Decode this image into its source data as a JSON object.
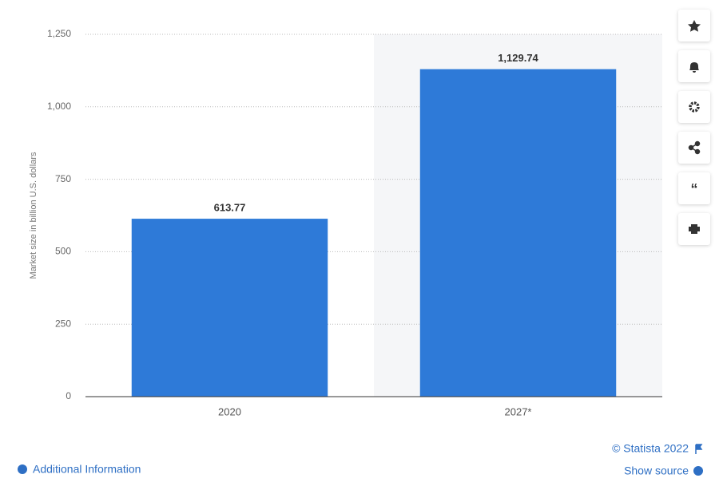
{
  "chart_data": {
    "type": "bar",
    "y_label": "Market size in billion U.S. dollars",
    "categories": [
      "2020",
      "2027*"
    ],
    "values": [
      613.77,
      1129.74
    ],
    "value_labels": [
      "613.77",
      "1,129.74"
    ],
    "color": "#2e7ad8",
    "ylim": [
      0,
      1250
    ],
    "yticks": [
      0,
      250,
      500,
      750,
      {
        "value": 1000,
        "label": "1,000"
      },
      {
        "value": 1250,
        "label": "1,250"
      }
    ],
    "grid": true
  },
  "footer": {
    "copyright": "© Statista 2022",
    "additional_info": "Additional Information",
    "show_source": "Show source"
  }
}
